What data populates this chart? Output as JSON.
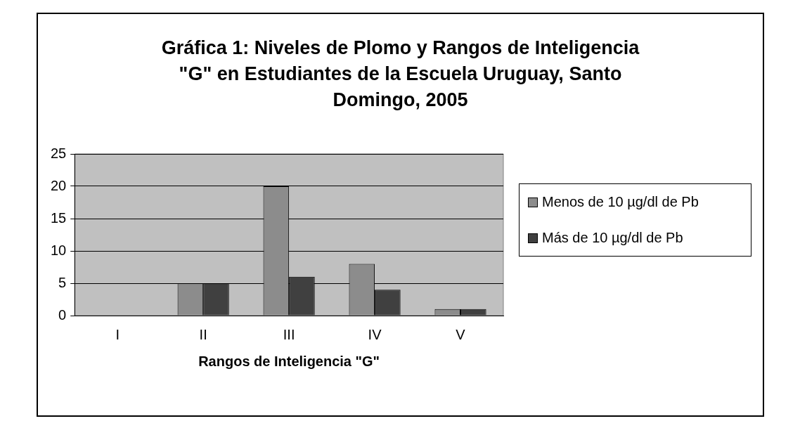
{
  "chart_data": {
    "type": "bar",
    "title": "Gráfica 1: Niveles de Plomo y Rangos de Inteligencia \"G\" en Estudiantes de la Escuela Uruguay, Santo Domingo, 2005",
    "xlabel": "Rangos de Inteligencia \"G\"",
    "categories": [
      "I",
      "II",
      "III",
      "IV",
      "V"
    ],
    "series": [
      {
        "name": "Menos de 10 µg/dl de Pb",
        "color": "#8c8c8c",
        "values": [
          0,
          5,
          20,
          8,
          1
        ]
      },
      {
        "name": "Más de 10 µg/dl de Pb",
        "color": "#404040",
        "values": [
          0,
          5,
          6,
          4,
          1
        ]
      }
    ],
    "ylim": [
      0,
      25
    ],
    "yticks": [
      0,
      5,
      10,
      15,
      20,
      25
    ],
    "grid": "y",
    "legend": "right"
  }
}
